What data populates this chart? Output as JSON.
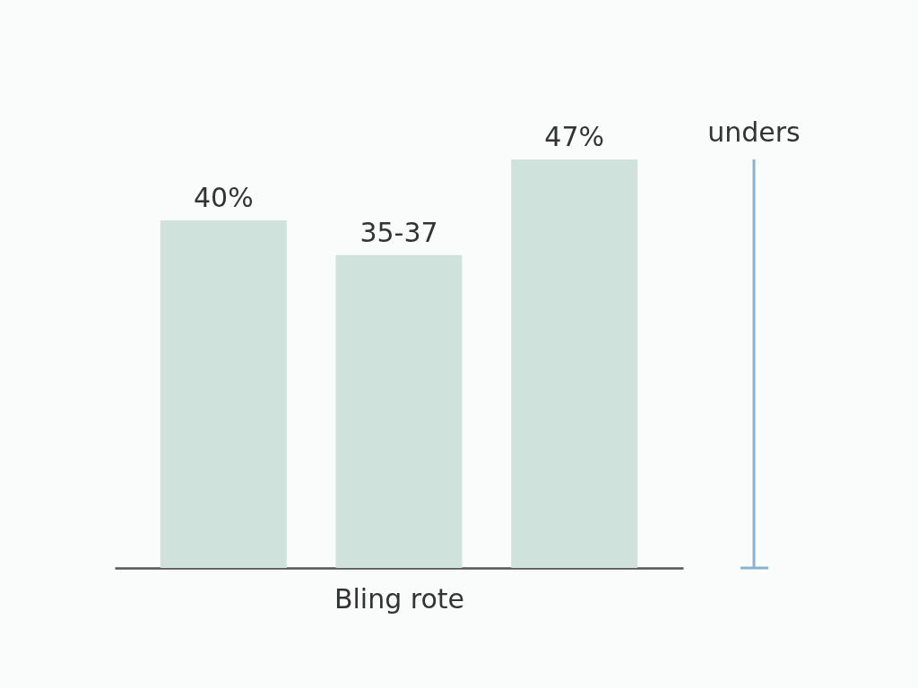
{
  "chart_data": {
    "type": "bar",
    "xlabel": "Bling rote",
    "categories": [
      null,
      null,
      null
    ],
    "values": [
      40,
      36,
      47
    ],
    "value_labels": [
      "40%",
      "35-37",
      "47%"
    ],
    "color": "#cfe2dc",
    "annotations": [
      "unders"
    ]
  }
}
